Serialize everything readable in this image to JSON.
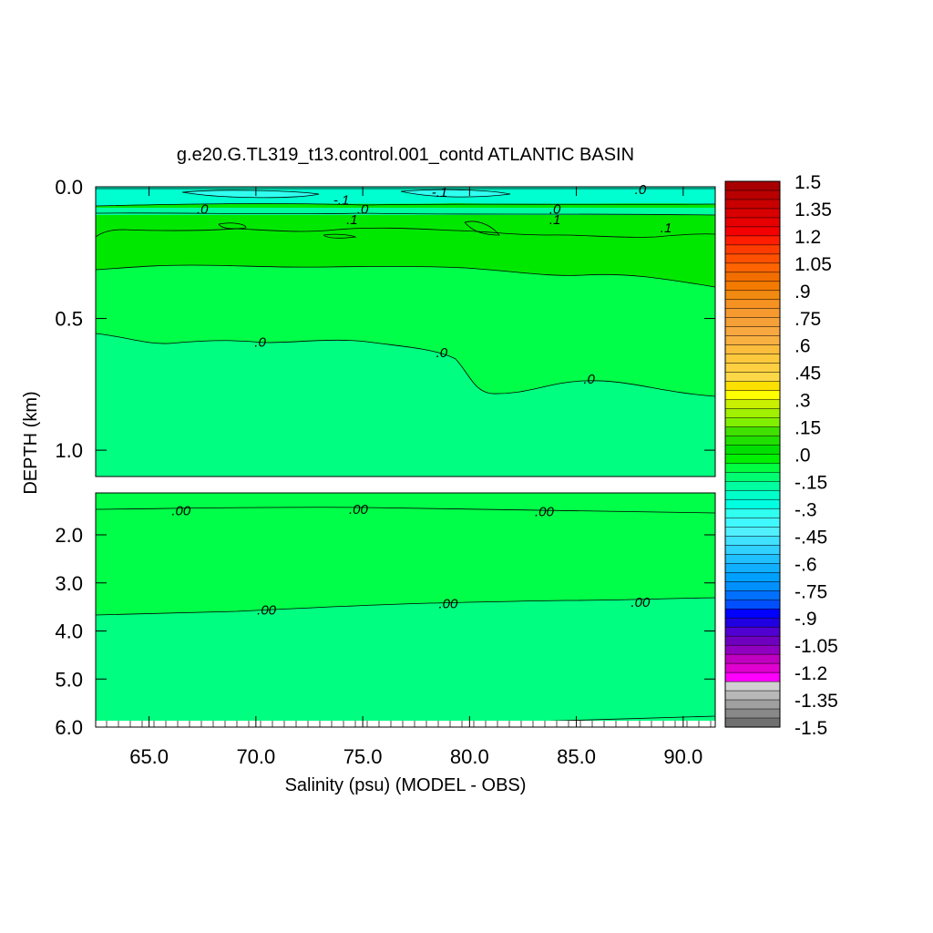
{
  "chart_data": {
    "type": "heatmap",
    "title": "g.e20.G.TL319_t13.control.001_contd ATLANTIC BASIN",
    "xlabel": "Salinity (psu) (MODEL - OBS)",
    "ylabel": "DEPTH (km)",
    "x_ticks": [
      "65.0",
      "70.0",
      "75.0",
      "80.0",
      "85.0",
      "90.0"
    ],
    "x_tick_values": [
      65,
      70,
      75,
      80,
      85,
      90
    ],
    "xlim": [
      62.5,
      91.5
    ],
    "upper_panel": {
      "ylim": [
        0.0,
        1.1
      ],
      "y_ticks": [
        "0.0",
        "0.5",
        "1.0"
      ],
      "y_tick_values": [
        0.0,
        0.5,
        1.0
      ],
      "contour_labels": [
        {
          "text": "-.1",
          "x": 74.0,
          "y": 0.05
        },
        {
          "text": "-.1",
          "x": 78.6,
          "y": 0.02
        },
        {
          "text": ".0",
          "x": 88.0,
          "y": 0.01
        },
        {
          "text": ".0",
          "x": 67.5,
          "y": 0.085
        },
        {
          "text": ".0",
          "x": 75.0,
          "y": 0.085
        },
        {
          "text": ".0",
          "x": 84.0,
          "y": 0.085
        },
        {
          "text": ".1",
          "x": 74.5,
          "y": 0.125
        },
        {
          "text": ".1",
          "x": 84.0,
          "y": 0.125
        },
        {
          "text": ".1",
          "x": 89.2,
          "y": 0.155
        },
        {
          "text": ".0",
          "x": 70.2,
          "y": 0.59
        },
        {
          "text": ".0",
          "x": 78.7,
          "y": 0.63
        },
        {
          "text": ".0",
          "x": 85.6,
          "y": 0.73
        }
      ]
    },
    "lower_panel": {
      "ylim": [
        1.1,
        6.0
      ],
      "y_ticks": [
        "2.0",
        "3.0",
        "4.0",
        "5.0",
        "6.0"
      ],
      "y_tick_values": [
        2.0,
        3.0,
        4.0,
        5.0,
        6.0
      ],
      "contour_labels": [
        {
          "text": ".00",
          "x": 66.5,
          "y": 1.5
        },
        {
          "text": ".00",
          "x": 74.8,
          "y": 1.47
        },
        {
          "text": ".00",
          "x": 83.5,
          "y": 1.52
        },
        {
          "text": ".00",
          "x": 70.5,
          "y": 3.56
        },
        {
          "text": ".00",
          "x": 79.0,
          "y": 3.43
        },
        {
          "text": ".00",
          "x": 88.0,
          "y": 3.4
        }
      ]
    },
    "colorbar": {
      "labels": [
        "1.5",
        "1.35",
        "1.2",
        "1.05",
        ".9",
        ".75",
        ".6",
        ".45",
        ".3",
        ".15",
        ".0",
        "-.15",
        "-.3",
        "-.45",
        "-.6",
        "-.75",
        "-.9",
        "-1.05",
        "-1.2",
        "-1.35",
        "-1.5"
      ],
      "colors": [
        "#a80000",
        "#b80000",
        "#c80000",
        "#d80000",
        "#e80000",
        "#f40000",
        "#ff1e00",
        "#ff3c00",
        "#ff5000",
        "#ff6400",
        "#f26e00",
        "#f47a00",
        "#f08a10",
        "#f69222",
        "#f69a30",
        "#f6a038",
        "#f8a840",
        "#f8b040",
        "#fcbc3c",
        "#fcc83c",
        "#fcd040",
        "#fcd848",
        "#fce000",
        "#ffff00",
        "#c8f000",
        "#a0f000",
        "#80f000",
        "#40e000",
        "#20e000",
        "#00e000",
        "#00f000",
        "#00ff40",
        "#00ff70",
        "#00ffa0",
        "#00ffc8",
        "#00ffe0",
        "#30fff0",
        "#40f8ff",
        "#50f0ff",
        "#40e0ff",
        "#30d0ff",
        "#20c0ff",
        "#10b0ff",
        "#00a0ff",
        "#0090ff",
        "#0070ff",
        "#0050ff",
        "#0000ff",
        "#2000e0",
        "#5000d0",
        "#7000c0",
        "#9000c0",
        "#c000c0",
        "#e000d0",
        "#ff00ff",
        "#d0d0d0",
        "#b8b8b8",
        "#a0a0a0",
        "#888888",
        "#707070"
      ]
    },
    "field_colors": {
      "near_surface": "#00ffd0",
      "subsurface_positive": "#00e800",
      "intermediate": "#00ff48",
      "deep": "#00ff80"
    }
  }
}
